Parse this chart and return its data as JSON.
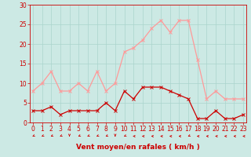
{
  "hours": [
    0,
    1,
    2,
    3,
    4,
    5,
    6,
    7,
    8,
    9,
    10,
    11,
    12,
    13,
    14,
    15,
    16,
    17,
    18,
    19,
    20,
    21,
    22,
    23
  ],
  "mean_wind": [
    3,
    3,
    4,
    2,
    3,
    3,
    3,
    3,
    5,
    3,
    8,
    6,
    9,
    9,
    9,
    8,
    7,
    6,
    1,
    1,
    3,
    1,
    1,
    2
  ],
  "gust_wind": [
    8,
    10,
    13,
    8,
    8,
    10,
    8,
    13,
    8,
    10,
    18,
    19,
    21,
    24,
    26,
    23,
    26,
    26,
    16,
    6,
    8,
    6,
    6,
    6
  ],
  "bg_color": "#cce9e4",
  "grid_color": "#aad4cc",
  "mean_color": "#cc0000",
  "gust_color": "#ff9999",
  "xlabel": "Vent moyen/en rafales ( km/h )",
  "ylim": [
    0,
    30
  ],
  "yticks": [
    0,
    5,
    10,
    15,
    20,
    25,
    30
  ],
  "tick_fontsize": 5.5,
  "xlabel_fontsize": 6.5
}
